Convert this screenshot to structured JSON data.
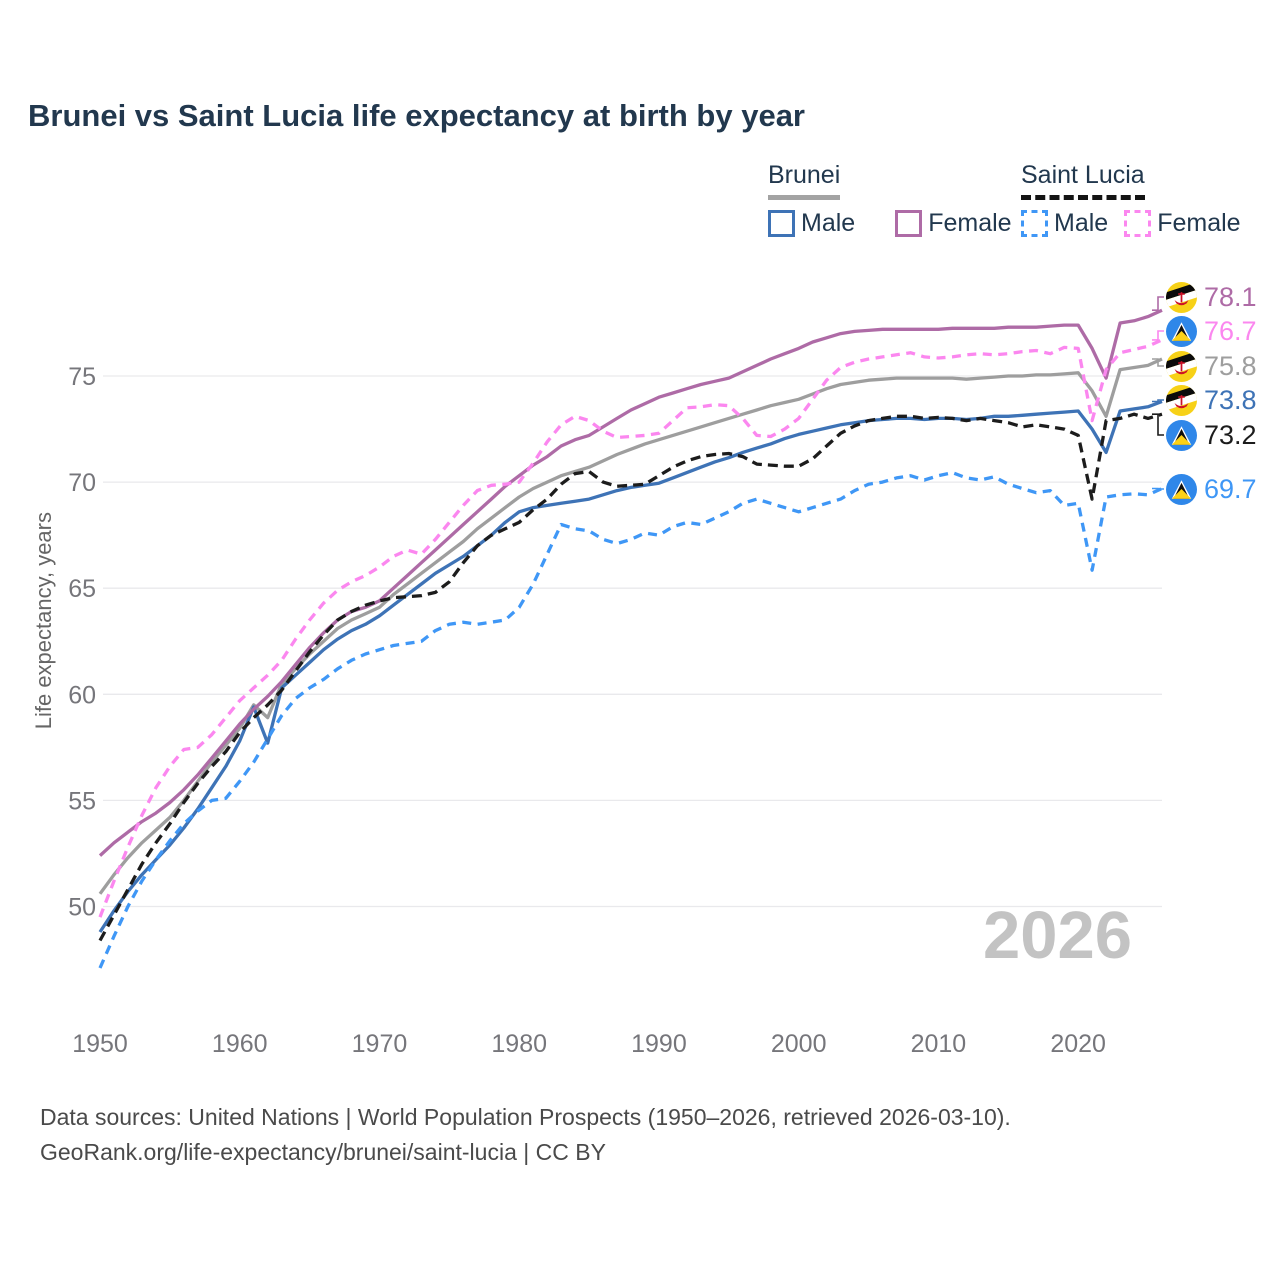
{
  "title": "Brunei vs Saint Lucia life expectancy at birth by year",
  "legend": {
    "groups": [
      {
        "name": "Brunei",
        "items": [
          {
            "label": "Male"
          },
          {
            "label": "Female"
          }
        ]
      },
      {
        "name": "Saint Lucia",
        "items": [
          {
            "label": "Male"
          },
          {
            "label": "Female"
          }
        ]
      }
    ]
  },
  "watermark": "2026",
  "footer": {
    "line1": "Data sources: United Nations | World Population Prospects (1950–2026, retrieved 2026-03-10).",
    "line2": "GeoRank.org/life-expectancy/brunei/saint-lucia | CC BY"
  },
  "chart_data": {
    "type": "line",
    "title": "Brunei vs Saint Lucia life expectancy at birth by year",
    "xlabel": "",
    "ylabel": "Life expectancy, years",
    "x_ticks": [
      1950,
      1960,
      1970,
      1980,
      1990,
      2000,
      2010,
      2020
    ],
    "y_ticks": [
      50,
      55,
      60,
      65,
      70,
      75
    ],
    "ylim": [
      46,
      79.5
    ],
    "grid": "horizontal",
    "legend_position": "top-right",
    "x": [
      1950,
      1951,
      1952,
      1953,
      1954,
      1955,
      1956,
      1957,
      1958,
      1959,
      1960,
      1961,
      1962,
      1963,
      1964,
      1965,
      1966,
      1967,
      1968,
      1969,
      1970,
      1971,
      1972,
      1973,
      1974,
      1975,
      1976,
      1977,
      1978,
      1979,
      1980,
      1981,
      1982,
      1983,
      1984,
      1985,
      1986,
      1987,
      1988,
      1989,
      1990,
      1991,
      1992,
      1993,
      1994,
      1995,
      1996,
      1997,
      1998,
      1999,
      2000,
      2001,
      2002,
      2003,
      2004,
      2005,
      2006,
      2007,
      2008,
      2009,
      2010,
      2011,
      2012,
      2013,
      2014,
      2015,
      2016,
      2017,
      2018,
      2019,
      2020,
      2021,
      2022,
      2023,
      2024,
      2025,
      2026
    ],
    "series": [
      {
        "key": "brunei-female",
        "name": "Brunei Female",
        "color": "#ae6ba6",
        "dash": false,
        "flag": "brunei",
        "end_label": "78.1",
        "values": [
          52.4,
          53.0,
          53.5,
          54.0,
          54.4,
          54.9,
          55.5,
          56.2,
          57.0,
          57.8,
          58.6,
          59.3,
          59.9,
          60.6,
          61.4,
          62.2,
          62.9,
          63.5,
          63.9,
          64.1,
          64.4,
          65.0,
          65.6,
          66.2,
          66.8,
          67.4,
          68.0,
          68.6,
          69.2,
          69.8,
          70.3,
          70.8,
          71.2,
          71.7,
          72.0,
          72.2,
          72.6,
          73.0,
          73.4,
          73.7,
          74.0,
          74.2,
          74.4,
          74.6,
          74.75,
          74.9,
          75.2,
          75.5,
          75.8,
          76.05,
          76.3,
          76.6,
          76.8,
          77.0,
          77.1,
          77.15,
          77.2,
          77.2,
          77.2,
          77.2,
          77.2,
          77.25,
          77.25,
          77.25,
          77.25,
          77.3,
          77.3,
          77.3,
          77.35,
          77.4,
          77.4,
          76.3,
          74.9,
          77.5,
          77.6,
          77.8,
          78.1
        ]
      },
      {
        "key": "saint-lucia-female",
        "name": "Saint Lucia Female",
        "color": "#fb87ef",
        "dash": true,
        "flag": "saint-lucia",
        "end_label": "76.7",
        "values": [
          49.5,
          51.2,
          52.8,
          54.3,
          55.6,
          56.6,
          57.4,
          57.5,
          58.1,
          58.9,
          59.7,
          60.3,
          60.9,
          61.6,
          62.6,
          63.5,
          64.3,
          64.9,
          65.3,
          65.6,
          66.0,
          66.5,
          66.8,
          66.6,
          67.3,
          68.1,
          68.9,
          69.6,
          69.85,
          69.9,
          70.0,
          70.9,
          71.9,
          72.7,
          73.1,
          72.9,
          72.4,
          72.1,
          72.15,
          72.2,
          72.3,
          72.9,
          73.5,
          73.55,
          73.65,
          73.6,
          73.0,
          72.2,
          72.15,
          72.5,
          73.0,
          73.9,
          74.8,
          75.4,
          75.65,
          75.8,
          75.9,
          76.0,
          76.1,
          75.9,
          75.85,
          75.9,
          76.0,
          76.05,
          76.0,
          76.05,
          76.15,
          76.2,
          76.05,
          76.35,
          76.3,
          72.9,
          75.3,
          76.1,
          76.25,
          76.4,
          76.7
        ]
      },
      {
        "key": "brunei-total",
        "name": "Brunei",
        "color": "#9e9e9e",
        "dash": false,
        "flag": "brunei",
        "end_label": "75.8",
        "values": [
          50.6,
          51.5,
          52.3,
          53.0,
          53.6,
          54.2,
          55.0,
          55.9,
          56.8,
          57.6,
          58.4,
          59.5,
          58.9,
          60.5,
          61.2,
          61.9,
          62.5,
          63.1,
          63.5,
          63.8,
          64.1,
          64.7,
          65.2,
          65.7,
          66.2,
          66.7,
          67.2,
          67.8,
          68.3,
          68.8,
          69.3,
          69.7,
          70.0,
          70.3,
          70.5,
          70.7,
          71.0,
          71.3,
          71.55,
          71.8,
          72.0,
          72.2,
          72.4,
          72.6,
          72.8,
          73.0,
          73.2,
          73.4,
          73.6,
          73.75,
          73.9,
          74.15,
          74.4,
          74.6,
          74.7,
          74.8,
          74.85,
          74.9,
          74.9,
          74.9,
          74.9,
          74.9,
          74.85,
          74.9,
          74.95,
          75.0,
          75.0,
          75.05,
          75.05,
          75.1,
          75.15,
          74.3,
          73.1,
          75.3,
          75.4,
          75.5,
          75.8
        ]
      },
      {
        "key": "brunei-male",
        "name": "Brunei Male",
        "color": "#3e73b6",
        "dash": false,
        "flag": "brunei",
        "end_label": "73.8",
        "values": [
          48.8,
          49.8,
          50.7,
          51.5,
          52.2,
          52.9,
          53.7,
          54.6,
          55.6,
          56.6,
          57.8,
          59.4,
          57.7,
          60.3,
          60.9,
          61.5,
          62.1,
          62.6,
          63.0,
          63.3,
          63.7,
          64.2,
          64.7,
          65.2,
          65.7,
          66.1,
          66.5,
          67.0,
          67.5,
          68.1,
          68.6,
          68.8,
          68.9,
          69.0,
          69.1,
          69.2,
          69.4,
          69.6,
          69.75,
          69.85,
          69.95,
          70.2,
          70.45,
          70.7,
          70.95,
          71.15,
          71.4,
          71.6,
          71.8,
          72.05,
          72.25,
          72.4,
          72.55,
          72.7,
          72.8,
          72.9,
          72.95,
          73.0,
          73.0,
          72.95,
          73.0,
          73.0,
          72.95,
          73.0,
          73.1,
          73.1,
          73.15,
          73.2,
          73.25,
          73.3,
          73.35,
          72.5,
          71.4,
          73.35,
          73.45,
          73.55,
          73.8
        ]
      },
      {
        "key": "saint-lucia-total",
        "name": "Saint Lucia",
        "color": "#1c1c1c",
        "dash": true,
        "flag": "saint-lucia",
        "end_label": "73.2",
        "values": [
          48.4,
          49.6,
          50.8,
          52.0,
          53.0,
          53.9,
          54.9,
          55.8,
          56.6,
          57.3,
          58.2,
          58.9,
          59.5,
          60.2,
          61.1,
          62.0,
          62.8,
          63.5,
          63.9,
          64.2,
          64.4,
          64.55,
          64.6,
          64.65,
          64.8,
          65.3,
          66.2,
          67.0,
          67.5,
          67.8,
          68.1,
          68.7,
          69.2,
          69.9,
          70.4,
          70.5,
          70.0,
          69.8,
          69.85,
          69.9,
          70.3,
          70.7,
          71.0,
          71.2,
          71.3,
          71.35,
          71.2,
          70.85,
          70.8,
          70.75,
          70.75,
          71.1,
          71.7,
          72.3,
          72.65,
          72.9,
          73.0,
          73.1,
          73.1,
          73.0,
          73.05,
          73.0,
          72.9,
          73.0,
          72.9,
          72.8,
          72.6,
          72.7,
          72.6,
          72.5,
          72.2,
          69.2,
          72.9,
          73.0,
          73.2,
          73.0,
          73.2
        ]
      },
      {
        "key": "saint-lucia-male",
        "name": "Saint Lucia Male",
        "color": "#3f97f6",
        "dash": true,
        "flag": "saint-lucia",
        "end_label": "69.7",
        "values": [
          47.1,
          48.6,
          50.0,
          51.2,
          52.2,
          53.1,
          53.9,
          54.5,
          55.0,
          55.1,
          55.9,
          56.8,
          57.9,
          59.0,
          59.8,
          60.3,
          60.7,
          61.2,
          61.6,
          61.9,
          62.1,
          62.3,
          62.4,
          62.5,
          63.0,
          63.3,
          63.4,
          63.3,
          63.4,
          63.5,
          64.1,
          65.2,
          66.6,
          68.0,
          67.8,
          67.7,
          67.3,
          67.1,
          67.3,
          67.6,
          67.5,
          67.9,
          68.1,
          68.0,
          68.3,
          68.6,
          69.0,
          69.2,
          69.0,
          68.8,
          68.6,
          68.8,
          69.0,
          69.2,
          69.6,
          69.9,
          70.0,
          70.2,
          70.3,
          70.1,
          70.3,
          70.45,
          70.2,
          70.1,
          70.25,
          69.9,
          69.7,
          69.5,
          69.6,
          68.9,
          69.0,
          65.85,
          69.3,
          69.4,
          69.45,
          69.4,
          69.7
        ]
      }
    ]
  }
}
